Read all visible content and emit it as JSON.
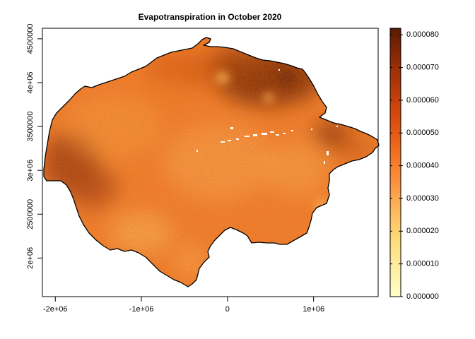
{
  "map": {
    "title": "Evapotranspiration in October 2020",
    "x_axis": {
      "tick_labels": [
        "-2e+06",
        "-1e+06",
        "0",
        "1e+06"
      ],
      "tick_values": [
        -2000000,
        -1000000,
        0,
        1000000
      ],
      "range": [
        -2150000,
        1750000
      ]
    },
    "y_axis": {
      "tick_labels": [
        "2e+06",
        "2500000",
        "3e+06",
        "3500000",
        "4e+06",
        "4500000"
      ],
      "tick_values": [
        2000000,
        2500000,
        3000000,
        3500000,
        4000000,
        4500000
      ],
      "range": [
        1560000,
        4620000
      ]
    }
  },
  "colorbar": {
    "tick_labels": [
      "0.000000",
      "0.000010",
      "0.000020",
      "0.000030",
      "0.000040",
      "0.000050",
      "0.000060",
      "0.000070",
      "0.000080"
    ],
    "tick_values": [
      0,
      1e-05,
      2e-05,
      3e-05,
      4e-05,
      5e-05,
      6e-05,
      7e-05,
      8e-05
    ],
    "range": [
      0,
      8.2e-05
    ],
    "colors": [
      "#FFFFCC",
      "#FEEDA0",
      "#FED976",
      "#FDB45A",
      "#F98C3A",
      "#EE6A1E",
      "#D94A0E",
      "#B53A0A",
      "#8C2A06",
      "#5C1A03"
    ]
  },
  "raster": {
    "base_color": "#EF7D2E",
    "dark_color": "#A84614",
    "light_color": "#F7A64B",
    "nodata_color": "#FFFFFF",
    "outline_color": "#000000"
  }
}
